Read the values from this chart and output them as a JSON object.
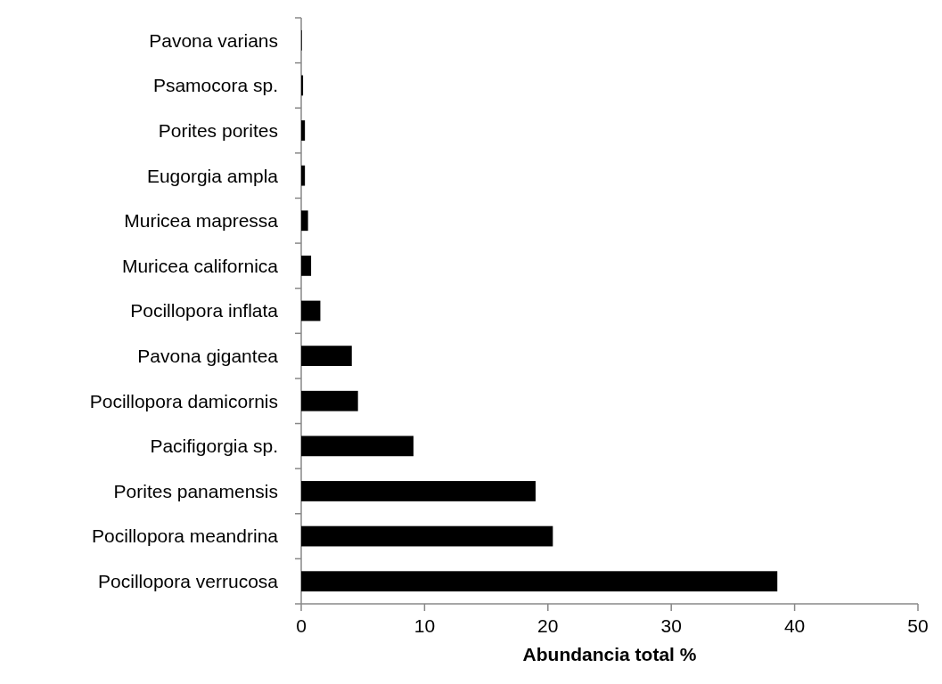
{
  "chart_data": {
    "type": "bar",
    "orientation": "horizontal",
    "xlabel": "Abundancia total %",
    "categories": [
      "Pavona varians",
      "Psamocora sp.",
      "Porites porites",
      "Eugorgia ampla",
      "Muricea mapressa",
      "Muricea californica",
      "Pocillopora inflata",
      "Pavona gigantea",
      "Pocillopora damicornis",
      "Pacifigorgia sp.",
      "Porites panamensis",
      "Pocillopora meandrina",
      "Pocillopora verrucosa"
    ],
    "values": [
      0.05,
      0.15,
      0.3,
      0.3,
      0.55,
      0.8,
      1.55,
      4.1,
      4.6,
      9.1,
      19.0,
      20.4,
      38.6
    ],
    "color": "#000000",
    "xlim": [
      0,
      50
    ],
    "xticks": [
      0,
      10,
      20,
      30,
      40,
      50
    ],
    "grid": false
  }
}
